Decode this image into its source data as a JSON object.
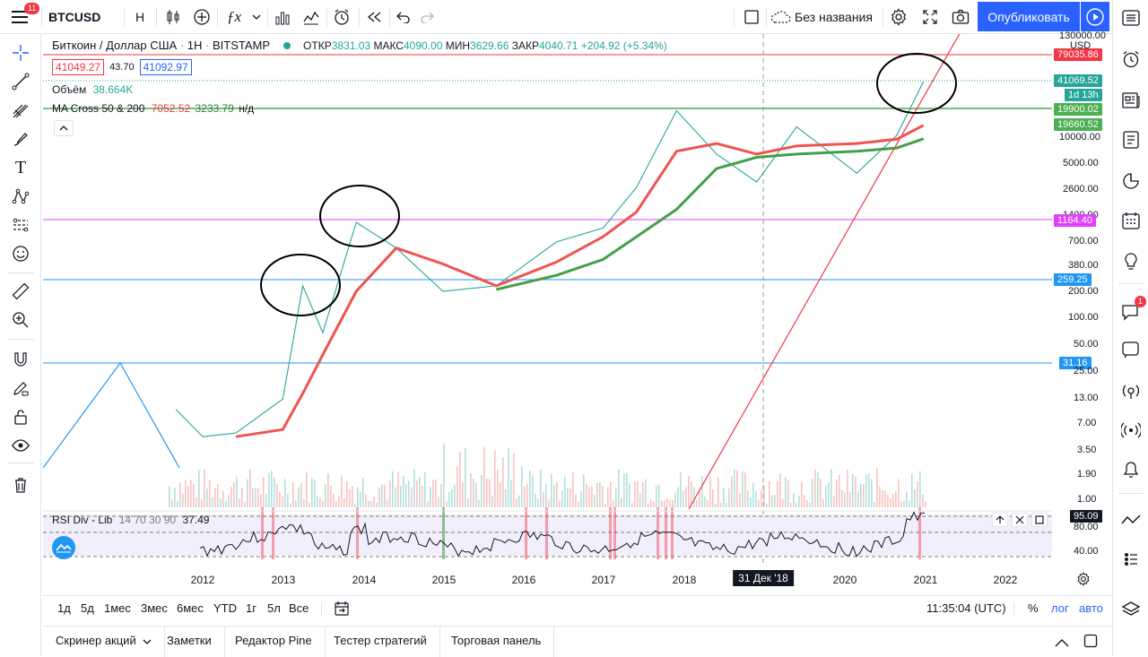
{
  "toolbar": {
    "symbol": "BTCUSD",
    "interval": "Н",
    "layout_name": "Без названия",
    "publish": "Опубликовать",
    "notifications": "11"
  },
  "legend": {
    "title": "Биткоин / Доллар США",
    "interval": "1Н",
    "exchange": "BITSTAMP",
    "open_label": "ОТКР",
    "open": "3831.03",
    "high_label": "МАКС",
    "high": "4090.00",
    "low_label": "МИН",
    "low": "3629.66",
    "close_label": "ЗАКР",
    "close": "4040.71",
    "change": "+204.92 (+5.34%)",
    "bid": "41049.27",
    "spread": "43.70",
    "ask": "41092.97",
    "volume_label": "Объём",
    "volume": "38.664K",
    "ma_label": "MA Cross 50 & 200",
    "ma_fast": "7052.52",
    "ma_slow": "3233.79",
    "ma_na": "н/д",
    "rsi_label": "RSI Div - Lib",
    "rsi_params": "14 70 30 90",
    "rsi_value": "37.49"
  },
  "yaxis": {
    "currency": "USD",
    "ticks": [
      "130000.00",
      "10000.00",
      "5000.00",
      "2600.00",
      "1400.00",
      "700.00",
      "380.00",
      "200.00",
      "100.00",
      "50.00",
      "25.00",
      "13.00",
      "7.00",
      "3.50",
      "1.90",
      "1.00"
    ],
    "rsi_ticks": [
      "80.00",
      "40.00"
    ],
    "tags": [
      {
        "label": "79035.86",
        "color": "#f23645"
      },
      {
        "label": "41069.52",
        "color": "#26a69a"
      },
      {
        "label": "1d 13h",
        "color": "#26a69a"
      },
      {
        "label": "19900.02",
        "color": "#4caf50"
      },
      {
        "label": "19660.52",
        "color": "#4caf50"
      },
      {
        "label": "1164.40",
        "color": "#e040fb"
      },
      {
        "label": "259.25",
        "color": "#2196f3"
      },
      {
        "label": "31.16",
        "color": "#2196f3"
      },
      {
        "label": "95.09",
        "color": "#131722"
      }
    ]
  },
  "xaxis": {
    "years": [
      "2012",
      "2013",
      "2014",
      "2015",
      "2016",
      "2017",
      "2018",
      "2019",
      "2020",
      "2021",
      "2022"
    ],
    "crosshair_label": "31 Дек '18"
  },
  "bottom": {
    "ranges": [
      "1д",
      "5д",
      "1мес",
      "3мес",
      "6мес",
      "YTD",
      "1г",
      "5л",
      "Все"
    ],
    "time": "11:35:04 (UTC)",
    "percent": "%",
    "log": "лог",
    "auto": "авто"
  },
  "tabs": [
    "Скринер акций",
    "Заметки",
    "Редактор Pine",
    "Тестер стратегий",
    "Торговая панель"
  ],
  "chat_badge": "1",
  "colors": {
    "accent": "#2962ff",
    "up": "#26a69a",
    "down": "#ef5350",
    "ma_fast": "#f05350",
    "ma_slow": "#43a047"
  },
  "chart_data": {
    "type": "line",
    "scale": "log",
    "x": [
      "2011-09",
      "2012-01",
      "2012-06",
      "2013-01",
      "2013-04",
      "2013-07",
      "2013-12",
      "2014-06",
      "2015-01",
      "2015-09",
      "2016-06",
      "2017-01",
      "2017-06",
      "2017-12",
      "2018-06",
      "2018-12",
      "2019-06",
      "2020-03",
      "2020-09",
      "2021-01"
    ],
    "series": [
      {
        "values": [
          10,
          5,
          5.5,
          13,
          230,
          70,
          1150,
          600,
          200,
          230,
          700,
          1000,
          2800,
          19500,
          6500,
          3200,
          13000,
          4000,
          10500,
          41000
        ]
      },
      {
        "values": [
          null,
          null,
          5,
          6,
          15,
          40,
          200,
          600,
          400,
          230,
          420,
          800,
          1500,
          7000,
          8500,
          6500,
          8000,
          8500,
          9500,
          13500
        ]
      },
      {
        "values": [
          null,
          null,
          null,
          null,
          null,
          null,
          null,
          null,
          null,
          210,
          300,
          450,
          800,
          1600,
          4500,
          6000,
          6500,
          7000,
          7600,
          9600
        ]
      }
    ],
    "ylim": [
      1,
      130000
    ],
    "grid": false
  }
}
